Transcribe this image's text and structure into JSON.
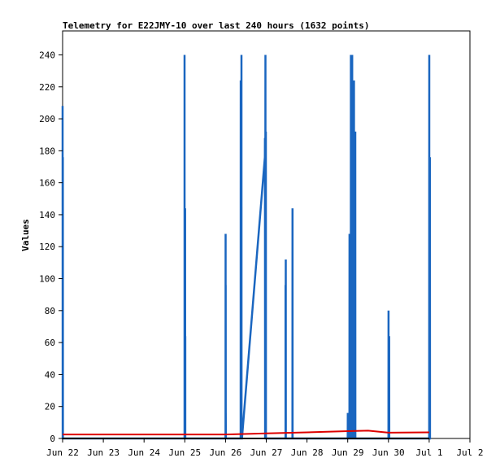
{
  "chart_data": {
    "type": "line",
    "title": "Telemetry for E22JMY-10 over last 240 hours (1632 points)",
    "xlabel": "",
    "ylabel": "Values",
    "ylim": [
      0,
      255
    ],
    "xlim": [
      "2024-06-22 00:00",
      "2024-07-02 00:00"
    ],
    "x_tick_labels": [
      "Jun 22",
      "Jun 23",
      "Jun 24",
      "Jun 25",
      "Jun 26",
      "Jun 27",
      "Jun 28",
      "Jun 29",
      "Jun 30",
      "Jul 1",
      "Jul 2"
    ],
    "y_ticks": [
      0,
      20,
      40,
      60,
      80,
      100,
      120,
      140,
      160,
      180,
      200,
      220,
      240
    ],
    "grid": false,
    "legend": "none",
    "colors": {
      "blue": "#1a66c0",
      "red": "#dd0000",
      "black": "#000000"
    },
    "series": [
      {
        "color": "#1a66c0",
        "points": [
          [
            "2024-06-22 00:00",
            208
          ],
          [
            "2024-06-22 00:02",
            0
          ],
          [
            "2024-06-22 00:04",
            176
          ],
          [
            "2024-06-22 00:06",
            0
          ],
          [
            "2024-06-22 00:09",
            176
          ],
          [
            "2024-06-22 00:12",
            0
          ],
          [
            "2024-06-24 23:50",
            0
          ],
          [
            "2024-06-24 23:52",
            240
          ],
          [
            "2024-06-24 23:55",
            0
          ],
          [
            "2024-06-25 00:06",
            0
          ],
          [
            "2024-06-25 00:08",
            144
          ],
          [
            "2024-06-25 00:10",
            0
          ],
          [
            "2024-06-25 00:12",
            144
          ],
          [
            "2024-06-25 00:14",
            0
          ],
          [
            "2024-06-25 00:16",
            64
          ],
          [
            "2024-06-25 00:18",
            0
          ],
          [
            "2024-06-26 00:00",
            0
          ],
          [
            "2024-06-26 00:02",
            128
          ],
          [
            "2024-06-26 00:04",
            0
          ],
          [
            "2024-06-26 00:06",
            96
          ],
          [
            "2024-06-26 00:08",
            0
          ],
          [
            "2024-06-26 00:10",
            16
          ],
          [
            "2024-06-26 00:12",
            0
          ],
          [
            "2024-06-26 08:55",
            0
          ],
          [
            "2024-06-26 08:57",
            224
          ],
          [
            "2024-06-26 09:00",
            0
          ],
          [
            "2024-06-26 09:20",
            0
          ],
          [
            "2024-06-26 09:22",
            240
          ],
          [
            "2024-06-26 09:25",
            0
          ],
          [
            "2024-06-26 09:40",
            0
          ],
          [
            "2024-06-26 23:10",
            176
          ],
          [
            "2024-06-26 23:15",
            188
          ],
          [
            "2024-06-26 23:20",
            0
          ],
          [
            "2024-06-26 23:30",
            240
          ],
          [
            "2024-06-26 23:34",
            0
          ],
          [
            "2024-06-26 23:45",
            192
          ],
          [
            "2024-06-26 23:48",
            0
          ],
          [
            "2024-06-27 11:20",
            0
          ],
          [
            "2024-06-27 11:22",
            96
          ],
          [
            "2024-06-27 11:24",
            0
          ],
          [
            "2024-06-27 11:30",
            112
          ],
          [
            "2024-06-27 11:33",
            0
          ],
          [
            "2024-06-27 15:25",
            0
          ],
          [
            "2024-06-27 15:27",
            144
          ],
          [
            "2024-06-27 15:30",
            0
          ],
          [
            "2024-06-29 00:00",
            0
          ],
          [
            "2024-06-29 00:02",
            16
          ],
          [
            "2024-06-29 00:04",
            0
          ],
          [
            "2024-06-29 01:00",
            0
          ],
          [
            "2024-06-29 01:02",
            128
          ],
          [
            "2024-06-29 01:04",
            0
          ],
          [
            "2024-06-29 01:50",
            0
          ],
          [
            "2024-06-29 01:52",
            240
          ],
          [
            "2024-06-29 01:54",
            0
          ],
          [
            "2024-06-29 02:10",
            0
          ],
          [
            "2024-06-29 02:12",
            168
          ],
          [
            "2024-06-29 02:14",
            0
          ],
          [
            "2024-06-29 02:35",
            0
          ],
          [
            "2024-06-29 02:37",
            240
          ],
          [
            "2024-06-29 02:39",
            0
          ],
          [
            "2024-06-29 02:55",
            0
          ],
          [
            "2024-06-29 02:57",
            0
          ],
          [
            "2024-06-29 03:40",
            0
          ],
          [
            "2024-06-29 03:42",
            224
          ],
          [
            "2024-06-29 03:44",
            0
          ],
          [
            "2024-06-29 04:05",
            0
          ],
          [
            "2024-06-29 04:07",
            160
          ],
          [
            "2024-06-29 04:09",
            0
          ],
          [
            "2024-06-29 04:25",
            0
          ],
          [
            "2024-06-29 04:27",
            192
          ],
          [
            "2024-06-29 04:29",
            0
          ],
          [
            "2024-06-30 00:00",
            0
          ],
          [
            "2024-06-30 00:02",
            80
          ],
          [
            "2024-06-30 00:04",
            0
          ],
          [
            "2024-06-30 00:25",
            0
          ],
          [
            "2024-06-30 00:27",
            64
          ],
          [
            "2024-06-30 00:29",
            0
          ],
          [
            "2024-07-01 00:00",
            0
          ],
          [
            "2024-07-01 00:02",
            240
          ],
          [
            "2024-07-01 00:04",
            0
          ],
          [
            "2024-07-01 00:25",
            0
          ],
          [
            "2024-07-01 00:27",
            176
          ],
          [
            "2024-07-01 00:29",
            0
          ]
        ]
      },
      {
        "color": "#dd0000",
        "points": [
          [
            "2024-06-22 00:00",
            2.5
          ],
          [
            "2024-06-26 00:00",
            2.5
          ],
          [
            "2024-06-27 00:00",
            3.2
          ],
          [
            "2024-06-28 00:00",
            3.8
          ],
          [
            "2024-06-29 00:00",
            4.6
          ],
          [
            "2024-06-29 12:00",
            4.9
          ],
          [
            "2024-06-30 00:00",
            3.6
          ],
          [
            "2024-07-01 00:00",
            3.8
          ]
        ]
      },
      {
        "color": "#000000",
        "points": [
          [
            "2024-06-22 00:00",
            0
          ],
          [
            "2024-07-01 00:00",
            0
          ]
        ]
      }
    ]
  }
}
